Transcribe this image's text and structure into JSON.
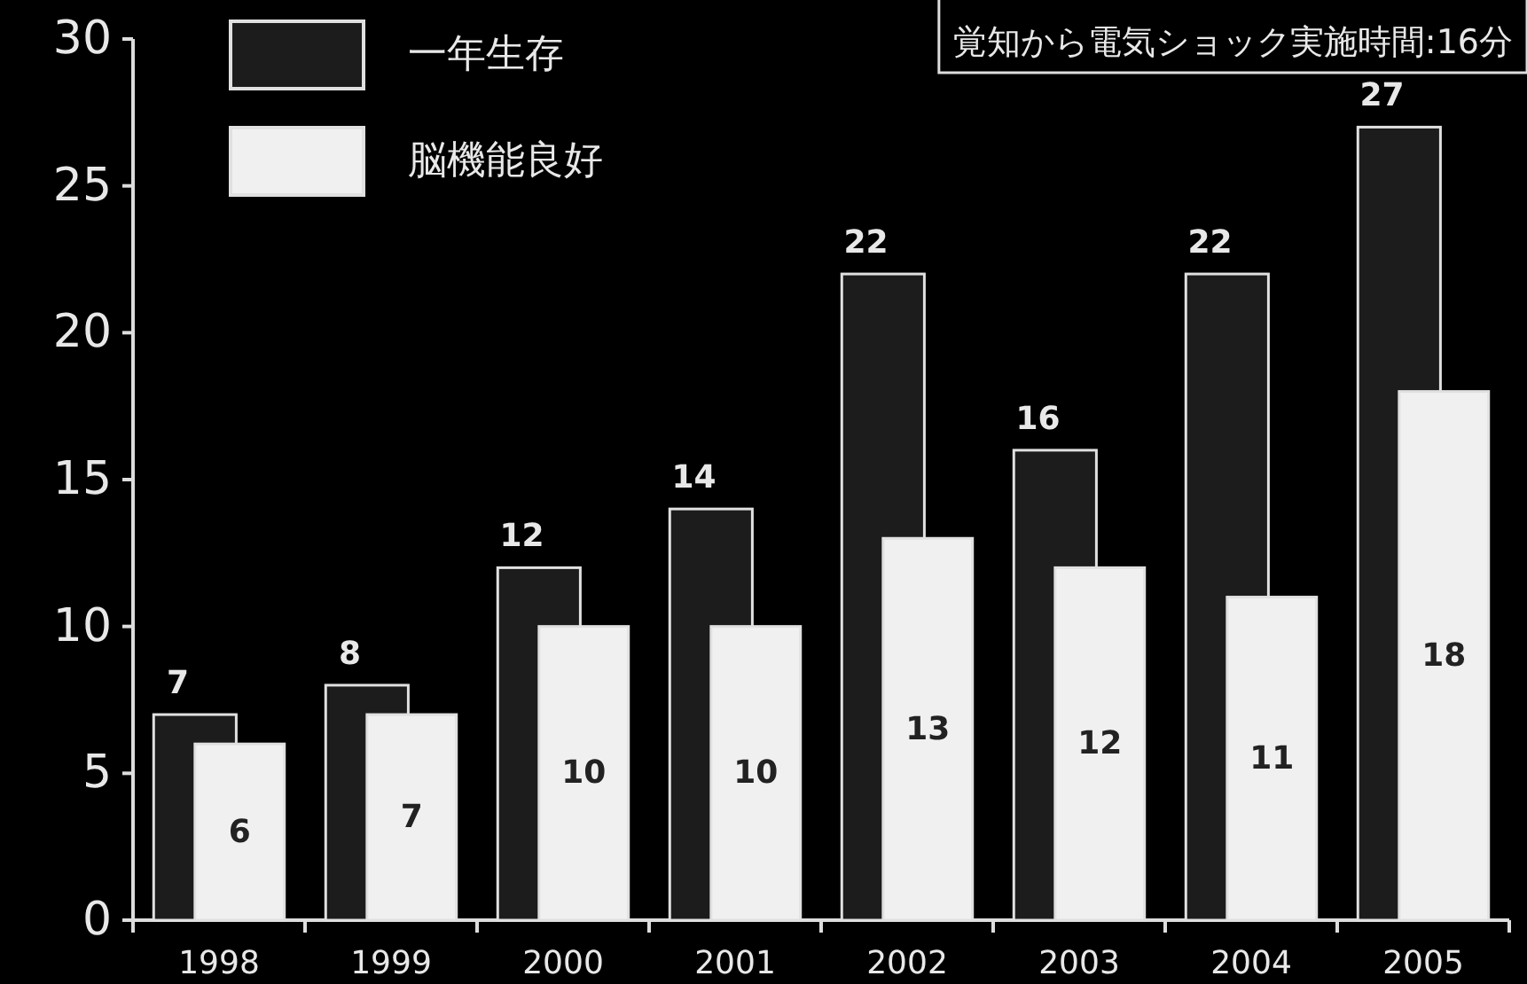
{
  "chart_data": {
    "type": "bar",
    "categories": [
      "1998",
      "1999",
      "2000",
      "2001",
      "2002",
      "2003",
      "2004",
      "2005"
    ],
    "series": [
      {
        "name": "一年生存",
        "color": "#1c1c1c",
        "values": [
          7,
          8,
          12,
          14,
          22,
          16,
          22,
          27
        ]
      },
      {
        "name": "脳機能良好",
        "color": "#f0f0f0",
        "values": [
          6,
          7,
          10,
          10,
          13,
          12,
          11,
          18
        ]
      }
    ],
    "ylim": [
      0,
      30
    ],
    "yticks": [
      0,
      5,
      10,
      15,
      20,
      25,
      30
    ],
    "data_labels": true,
    "legend": "top left",
    "annotations": [
      "覚知から電気ショック実施時間:16分"
    ]
  }
}
